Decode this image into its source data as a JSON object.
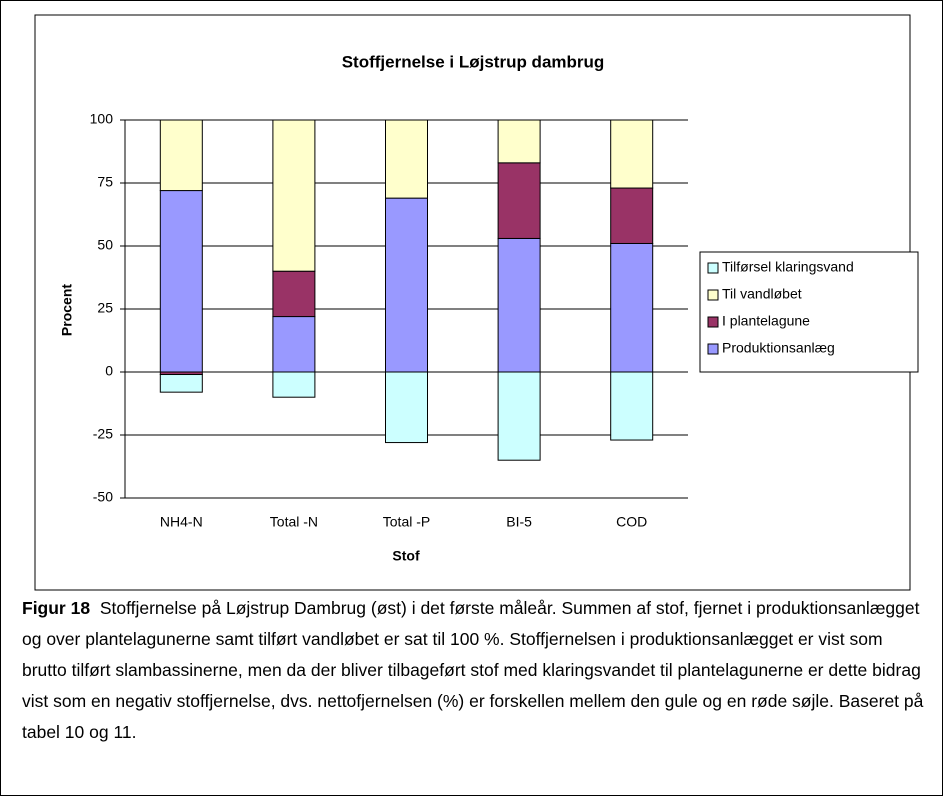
{
  "chart_data": {
    "type": "stacked-bar",
    "title": "Stoffjernelse i Løjstrup dambrug",
    "x_label": "Stof",
    "y_label": "Procent",
    "categories": [
      "NH4-N",
      "Total -N",
      "Total -P",
      "BI-5",
      "COD"
    ],
    "series": [
      {
        "name": "Produktionsanlæg",
        "color": "#9999ff",
        "values": [
          72,
          22,
          69,
          53,
          51
        ]
      },
      {
        "name": "I plantelagune",
        "color": "#993366",
        "values": [
          -1,
          18,
          0,
          30,
          22
        ]
      },
      {
        "name": "Til vandløbet",
        "color": "#ffffcc",
        "values": [
          28,
          60,
          31,
          17,
          27
        ]
      },
      {
        "name": "Tilførsel klaringsvand",
        "color": "#ccffff",
        "values": [
          -7,
          -10,
          -28,
          -35,
          -27
        ]
      }
    ],
    "ylim": [
      -50,
      100
    ],
    "yticks": [
      -50,
      -25,
      0,
      25,
      50,
      75,
      100
    ],
    "grid": true,
    "legend": "right"
  },
  "caption": {
    "label": "Figur 18",
    "text": "Stoffjernelse på Løjstrup Dambrug (øst) i det første måleår. Summen af stof, fjernet i produktionsanlægget og over plantelagunerne samt tilført vandløbet er sat til 100 %. Stoffjernelsen i produktionsanlægget er vist som brutto tilført slambassinerne, men da der bliver tilbageført stof med klaringsvandet til plantelagunerne er dette bidrag vist som en negativ stoffjernelse, dvs. nettofjernelsen (%) er forskellen mellem den gule og en røde søjle. Baseret på tabel 10 og 11."
  }
}
